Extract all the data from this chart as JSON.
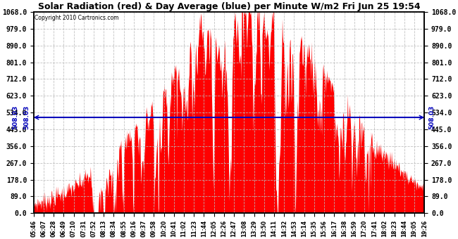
{
  "title": "Solar Radiation (red) & Day Average (blue) per Minute W/m2 Fri Jun 25 19:54",
  "copyright_text": "Copyright 2010 Cartronics.com",
  "y_ticks": [
    0.0,
    89.0,
    178.0,
    267.0,
    356.0,
    445.0,
    534.0,
    623.0,
    712.0,
    801.0,
    890.0,
    979.0,
    1068.0
  ],
  "y_min": 0.0,
  "y_max": 1068.0,
  "day_average": 508.03,
  "fill_color": "#FF0000",
  "line_color": "#0000BB",
  "background_color": "#FFFFFF",
  "grid_color": "#BBBBBB",
  "x_tick_labels": [
    "05:46",
    "06:07",
    "06:28",
    "06:49",
    "07:10",
    "07:31",
    "07:52",
    "08:13",
    "08:34",
    "08:55",
    "09:16",
    "09:37",
    "09:58",
    "10:20",
    "10:41",
    "11:02",
    "11:23",
    "11:44",
    "12:05",
    "12:26",
    "12:47",
    "13:08",
    "13:29",
    "13:50",
    "14:11",
    "14:32",
    "14:53",
    "15:14",
    "15:35",
    "15:56",
    "16:17",
    "16:38",
    "16:59",
    "17:20",
    "17:41",
    "18:02",
    "18:23",
    "18:44",
    "19:05",
    "19:26"
  ],
  "num_minutes": 820
}
